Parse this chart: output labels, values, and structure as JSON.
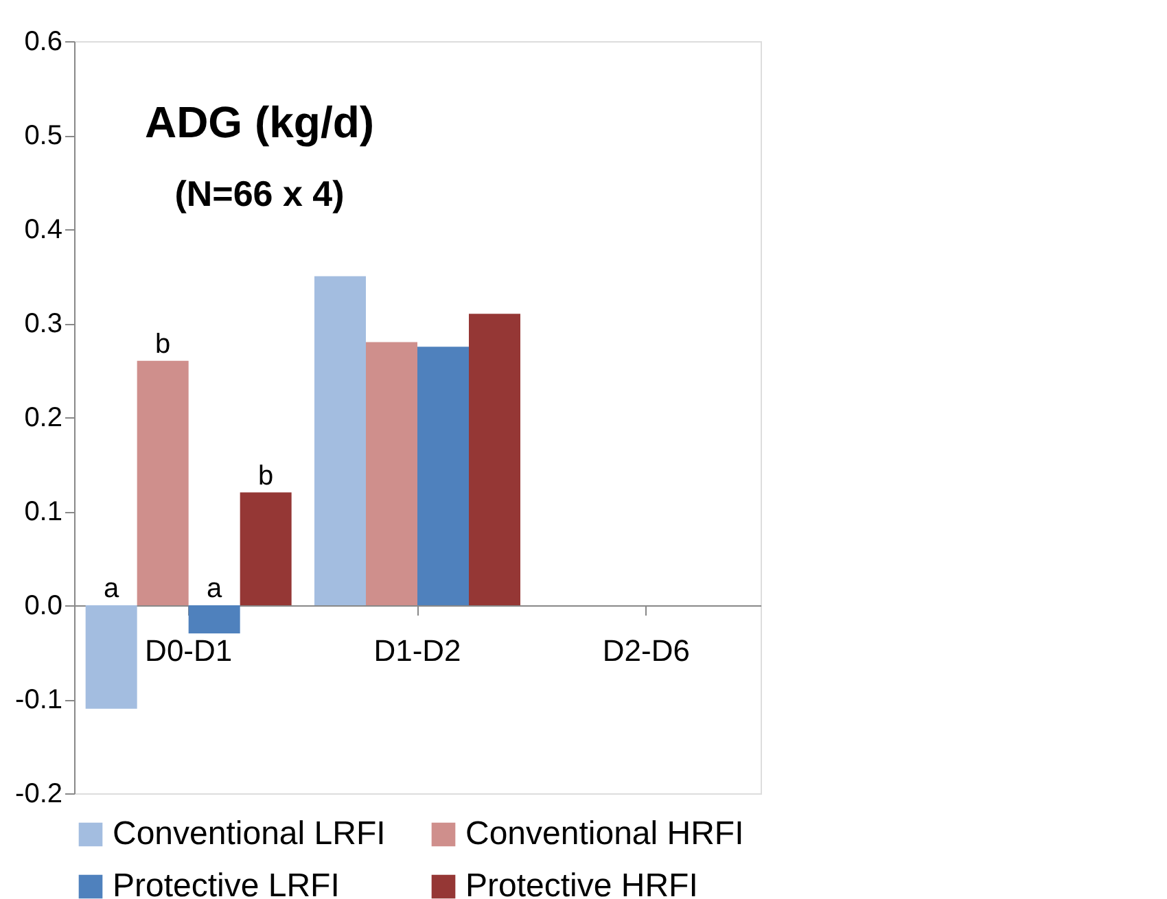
{
  "chart_data": {
    "type": "bar",
    "title": "ADG (kg/d)",
    "subtitle": "(N=66 x 4)",
    "categories": [
      "D0-D1",
      "D1-D2",
      "D2-D6"
    ],
    "series": [
      {
        "name": "Conventional LRFI",
        "color": "#a3bde0",
        "values": [
          -0.11,
          0.35,
          null
        ],
        "value_labels": [
          "a",
          null,
          null
        ]
      },
      {
        "name": "Conventional HRFI",
        "color": "#cf8f8c",
        "values": [
          0.26,
          0.28,
          null
        ],
        "value_labels": [
          "b",
          null,
          null
        ]
      },
      {
        "name": "Protective LRFI",
        "color": "#4f81bd",
        "values": [
          -0.03,
          0.275,
          null
        ],
        "value_labels": [
          "a",
          null,
          null
        ]
      },
      {
        "name": "Protective HRFI",
        "color": "#953735",
        "values": [
          0.12,
          0.31,
          null
        ],
        "value_labels": [
          "b",
          null,
          null
        ]
      }
    ],
    "ylim": [
      -0.2,
      0.6
    ],
    "yticks": [
      {
        "value": -0.2,
        "label": "-0.2"
      },
      {
        "value": -0.1,
        "label": "-0.1"
      },
      {
        "value": 0,
        "label": "0.0"
      },
      {
        "value": 0.1,
        "label": "0.1"
      },
      {
        "value": 0.2,
        "label": "0.2"
      },
      {
        "value": 0.3,
        "label": "0.3"
      },
      {
        "value": 0.4,
        "label": "0.4"
      },
      {
        "value": 0.5,
        "label": "0.5"
      },
      {
        "value": 0.6,
        "label": "0.6"
      }
    ],
    "grid": false,
    "legend": "bottom"
  }
}
